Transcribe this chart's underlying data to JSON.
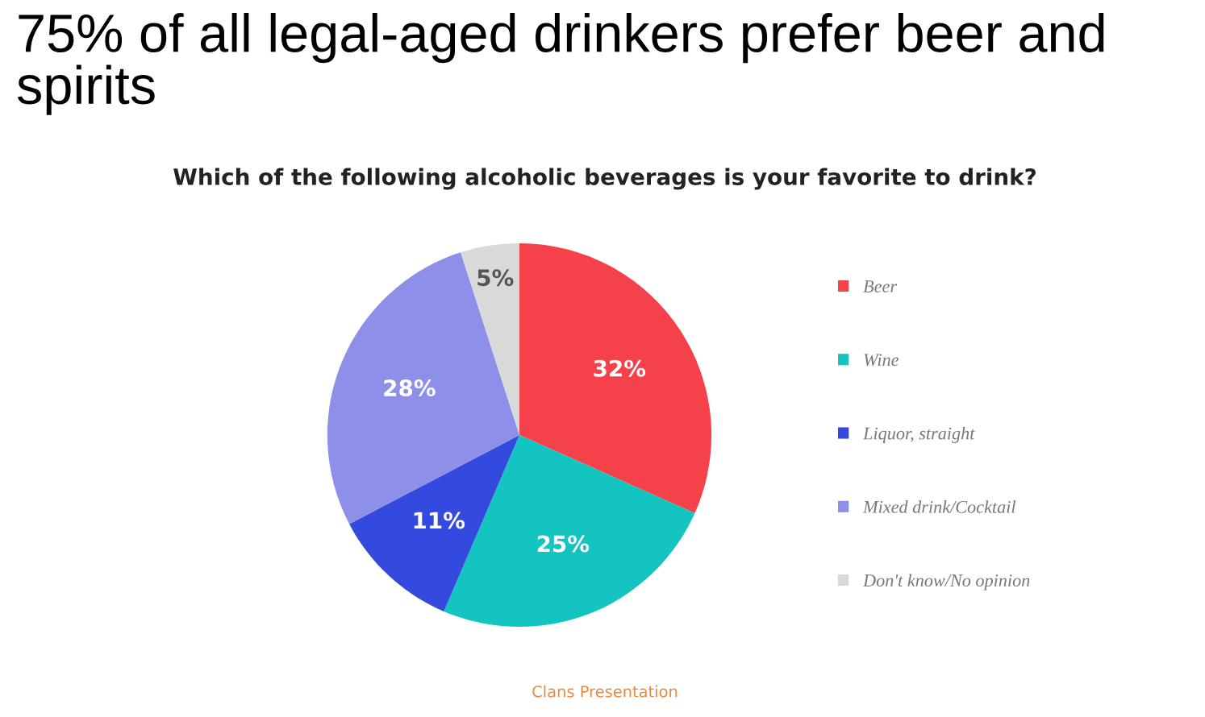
{
  "chart_data": {
    "type": "pie",
    "title": "75% of all legal-aged drinkers prefer beer and spirits",
    "subtitle": "Which of the following alcoholic beverages is your favorite to drink?",
    "categories": [
      "Beer",
      "Wine",
      "Liquor, straight",
      "Mixed drink/Cocktail",
      "Don't know/No opinion"
    ],
    "values": [
      32,
      25,
      11,
      28,
      5
    ],
    "colors": [
      "#f5424a",
      "#13c4c0",
      "#3449de",
      "#8d8fe8",
      "#d9d9d9"
    ],
    "value_labels": [
      "32%",
      "25%",
      "11%",
      "28%",
      "5%"
    ],
    "legend": "right",
    "annotations": [
      "Clans Presentation"
    ]
  }
}
